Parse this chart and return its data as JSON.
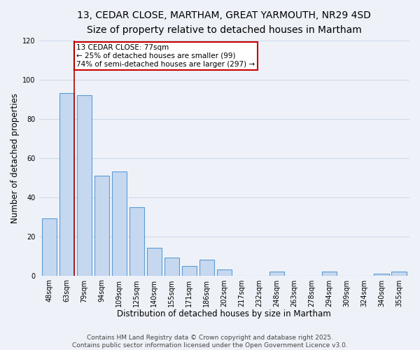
{
  "title": "13, CEDAR CLOSE, MARTHAM, GREAT YARMOUTH, NR29 4SD",
  "subtitle": "Size of property relative to detached houses in Martham",
  "xlabel": "Distribution of detached houses by size in Martham",
  "ylabel": "Number of detached properties",
  "categories": [
    "48sqm",
    "63sqm",
    "79sqm",
    "94sqm",
    "109sqm",
    "125sqm",
    "140sqm",
    "155sqm",
    "171sqm",
    "186sqm",
    "202sqm",
    "217sqm",
    "232sqm",
    "248sqm",
    "263sqm",
    "278sqm",
    "294sqm",
    "309sqm",
    "324sqm",
    "340sqm",
    "355sqm"
  ],
  "values": [
    29,
    93,
    92,
    51,
    53,
    35,
    14,
    9,
    5,
    8,
    3,
    0,
    0,
    2,
    0,
    0,
    2,
    0,
    0,
    1,
    2
  ],
  "bar_color": "#c5d8f0",
  "bar_edge_color": "#5b9bd5",
  "highlight_line_color": "#aa0000",
  "annotation_title": "13 CEDAR CLOSE: 77sqm",
  "annotation_line1": "← 25% of detached houses are smaller (99)",
  "annotation_line2": "74% of semi-detached houses are larger (297) →",
  "annotation_box_color": "#ffffff",
  "annotation_box_edge": "#cc0000",
  "ylim": [
    0,
    120
  ],
  "yticks": [
    0,
    20,
    40,
    60,
    80,
    100,
    120
  ],
  "footer_line1": "Contains HM Land Registry data © Crown copyright and database right 2025.",
  "footer_line2": "Contains public sector information licensed under the Open Government Licence v3.0.",
  "bg_color": "#eef2f8",
  "grid_color": "#d0daea",
  "title_fontsize": 10,
  "subtitle_fontsize": 9,
  "axis_label_fontsize": 8.5,
  "tick_fontsize": 7,
  "footer_fontsize": 6.5,
  "annotation_fontsize": 7.5
}
